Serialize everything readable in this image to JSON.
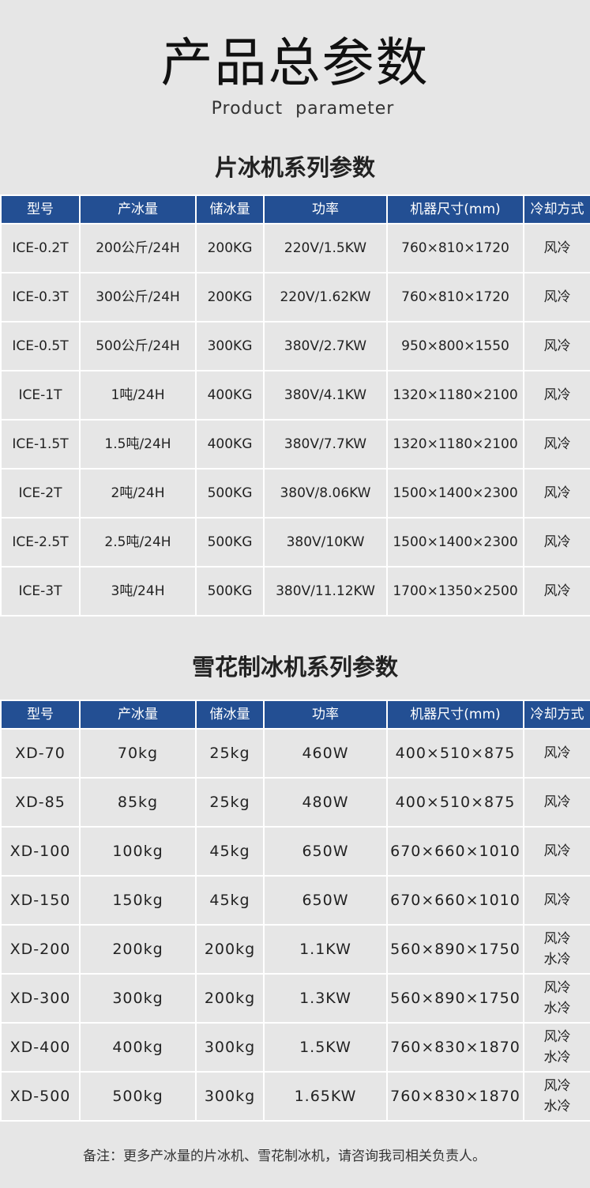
{
  "header": {
    "title": "产品总参数",
    "subtitle": "Product parameter"
  },
  "table1": {
    "title": "片冰机系列参数",
    "columns": [
      "型号",
      "产冰量",
      "储冰量",
      "功率",
      "机器尺寸(mm)",
      "冷却方式"
    ],
    "rows": [
      [
        "ICE-0.2T",
        "200公斤/24H",
        "200KG",
        "220V/1.5KW",
        "760×810×1720",
        "风冷"
      ],
      [
        "ICE-0.3T",
        "300公斤/24H",
        "200KG",
        "220V/1.62KW",
        "760×810×1720",
        "风冷"
      ],
      [
        "ICE-0.5T",
        "500公斤/24H",
        "300KG",
        "380V/2.7KW",
        "950×800×1550",
        "风冷"
      ],
      [
        "ICE-1T",
        "1吨/24H",
        "400KG",
        "380V/4.1KW",
        "1320×1180×2100",
        "风冷"
      ],
      [
        "ICE-1.5T",
        "1.5吨/24H",
        "400KG",
        "380V/7.7KW",
        "1320×1180×2100",
        "风冷"
      ],
      [
        "ICE-2T",
        "2吨/24H",
        "500KG",
        "380V/8.06KW",
        "1500×1400×2300",
        "风冷"
      ],
      [
        "ICE-2.5T",
        "2.5吨/24H",
        "500KG",
        "380V/10KW",
        "1500×1400×2300",
        "风冷"
      ],
      [
        "ICE-3T",
        "3吨/24H",
        "500KG",
        "380V/11.12KW",
        "1700×1350×2500",
        "风冷"
      ]
    ]
  },
  "table2": {
    "title": "雪花制冰机系列参数",
    "columns": [
      "型号",
      "产冰量",
      "储冰量",
      "功率",
      "机器尺寸(mm)",
      "冷却方式"
    ],
    "rows": [
      [
        "XD-70",
        "70kg",
        "25kg",
        "460W",
        "400×510×875",
        "风冷"
      ],
      [
        "XD-85",
        "85kg",
        "25kg",
        "480W",
        "400×510×875",
        "风冷"
      ],
      [
        "XD-100",
        "100kg",
        "45kg",
        "650W",
        "670×660×1010",
        "风冷"
      ],
      [
        "XD-150",
        "150kg",
        "45kg",
        "650W",
        "670×660×1010",
        "风冷"
      ],
      [
        "XD-200",
        "200kg",
        "200kg",
        "1.1KW",
        "560×890×1750",
        "风冷\n水冷"
      ],
      [
        "XD-300",
        "300kg",
        "200kg",
        "1.3KW",
        "560×890×1750",
        "风冷\n水冷"
      ],
      [
        "XD-400",
        "400kg",
        "300kg",
        "1.5KW",
        "760×830×1870",
        "风冷\n水冷"
      ],
      [
        "XD-500",
        "500kg",
        "300kg",
        "1.65KW",
        "760×830×1870",
        "风冷\n水冷"
      ]
    ]
  },
  "note": "备注：更多产冰量的片冰机、雪花制冰机，请咨询我司相关负责人。",
  "colors": {
    "header_bg": "#234f93",
    "page_bg": "#e6e6e6"
  }
}
